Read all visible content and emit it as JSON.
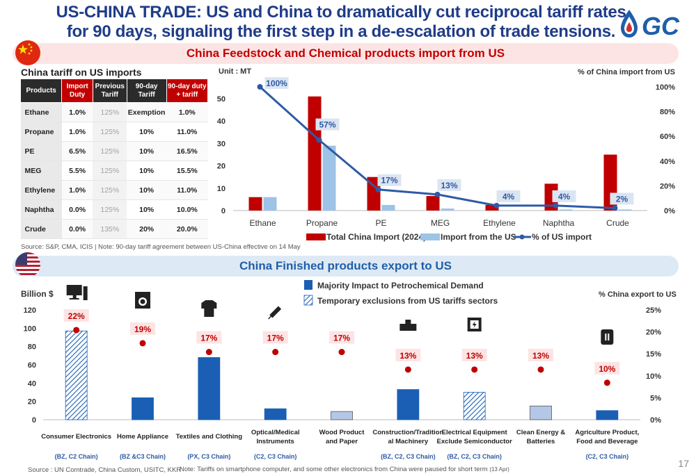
{
  "title_line1": "US-CHINA TRADE:  US and China to dramatically cut reciprocal tariff rates",
  "title_line2": "for 90 days, signaling the first step in a de-escalation of trade tensions.",
  "logo_text": "GC",
  "banner1": "China Feedstock and Chemical products import from US",
  "banner2": "China Finished products export to US",
  "tariff_table": {
    "title": "China tariff on US imports",
    "headers": [
      "Products",
      "Import Duty",
      "Previous Tariff",
      "90-day Tariff",
      "90-day duty + tariff"
    ],
    "rows": [
      [
        "Ethane",
        "1.0%",
        "125%",
        "Exemption",
        "1.0%"
      ],
      [
        "Propane",
        "1.0%",
        "125%",
        "10%",
        "11.0%"
      ],
      [
        "PE",
        "6.5%",
        "125%",
        "10%",
        "16.5%"
      ],
      [
        "MEG",
        "5.5%",
        "125%",
        "10%",
        "15.5%"
      ],
      [
        "Ethylene",
        "1.0%",
        "125%",
        "10%",
        "11.0%"
      ],
      [
        "Naphtha",
        "0.0%",
        "125%",
        "10%",
        "10.0%"
      ],
      [
        "Crude",
        "0.0%",
        "135%",
        "20%",
        "20.0%"
      ]
    ]
  },
  "source1": "Source: S&P, CMA, ICIS | Note: 90-day tariff agreement between US-China effective on 14 May",
  "source2": "Source : UN Comtrade, China Custom, USITC, KKR",
  "note2": "Note: Tariffs on smartphone computer, and some other electronics from China were paused for short term",
  "note2_suffix": "(13 Apr)",
  "page_number": "17",
  "colors": {
    "red": "#c00000",
    "lightblue": "#9dc3e6",
    "navy": "#2e5aa6",
    "blue_bar": "#1a5fb4",
    "grey_bar": "#b4c7e7",
    "title": "#1f3c88"
  },
  "chart_data": [
    {
      "type": "bar",
      "unit_label": "Unit : MT",
      "right_axis_label": "% of China import from US",
      "categories": [
        "Ethane",
        "Propane",
        "PE",
        "MEG",
        "Ethylene",
        "Naphtha",
        "Crude"
      ],
      "series": [
        {
          "name": "Total China Import (2024)",
          "type": "bar",
          "values": [
            6,
            51,
            15,
            6.5,
            2.5,
            12,
            25
          ]
        },
        {
          "name": "Import from the US",
          "type": "bar",
          "values": [
            6,
            29,
            2.5,
            0.9,
            0.1,
            0.5,
            0.5
          ]
        },
        {
          "name": "% of US import",
          "type": "line",
          "axis": "right",
          "values": [
            100,
            57,
            17,
            13,
            4,
            4,
            2
          ],
          "labels": [
            "100%",
            "57%",
            "17%",
            "13%",
            "4%",
            "4%",
            "2%"
          ]
        }
      ],
      "ylim": [
        0,
        50
      ],
      "yticks": [
        "0",
        "10",
        "20",
        "30",
        "40",
        "50"
      ],
      "y2lim": [
        0,
        100
      ],
      "y2ticks": [
        "0%",
        "20%",
        "40%",
        "60%",
        "80%",
        "100%"
      ],
      "legend_position": "bottom"
    },
    {
      "type": "bar",
      "ylabel": "Billion $",
      "right_axis_label": "% China export to US",
      "categories": [
        "Consumer Electronics",
        "Home Appliance",
        "Textiles and Clothing",
        "Optical/Medical Instruments",
        "Wood Product and Paper",
        "Construction/Traditional Machinery",
        "Electrical Equipment Exclude Semiconductor",
        "Clean Energy & Batteries",
        "Agriculture Product, Food and Beverage"
      ],
      "category_lines": [
        [
          "Consumer Electronics"
        ],
        [
          "Home Appliance"
        ],
        [
          "Textiles and Clothing"
        ],
        [
          "Optical/Medical",
          "Instruments"
        ],
        [
          "Wood Product",
          "and Paper"
        ],
        [
          "Construction/Tradition",
          "al Machinery"
        ],
        [
          "Electrical Equipment",
          "Exclude Semiconductor"
        ],
        [
          "Clean Energy &",
          "Batteries"
        ],
        [
          "Agriculture Product,",
          "Food and Beverage"
        ]
      ],
      "values": [
        97,
        24,
        68,
        12,
        9,
        33,
        30,
        15,
        10
      ],
      "bar_style": [
        "hatched",
        "majority",
        "majority",
        "majority",
        "grey",
        "majority",
        "hatched",
        "grey",
        "majority"
      ],
      "share_pct": [
        22,
        19,
        17,
        17,
        17,
        13,
        13,
        13,
        10
      ],
      "share_labels": [
        "22%",
        "19%",
        "17%",
        "17%",
        "17%",
        "13%",
        "13%",
        "13%",
        "10%"
      ],
      "product_codes": [
        "(BZ, C2 Chain)",
        "(BZ &C3 Chain)",
        "(PX, C3 Chain)",
        "(C2, C3 Chain)",
        "",
        "(BZ, C2, C3 Chain)",
        "(BZ, C2, C3 Chain)",
        "",
        "(C2, C3 Chain)"
      ],
      "icons": [
        "computer-icon",
        "washing-machine-icon",
        "shirt-icon",
        "syringe-icon",
        "",
        "machinery-icon",
        "electrical-panel-icon",
        "",
        "food-can-icon"
      ],
      "legend": [
        "Majority Impact to Petrochemical Demand",
        "Temporary exclusions from US tariffs sectors"
      ],
      "ylim": [
        0,
        120
      ],
      "yticks": [
        "0",
        "20",
        "40",
        "60",
        "80",
        "100",
        "120"
      ],
      "y2lim": [
        0,
        25
      ],
      "y2ticks": [
        "0%",
        "5%",
        "10%",
        "15%",
        "20%",
        "25%"
      ]
    }
  ]
}
